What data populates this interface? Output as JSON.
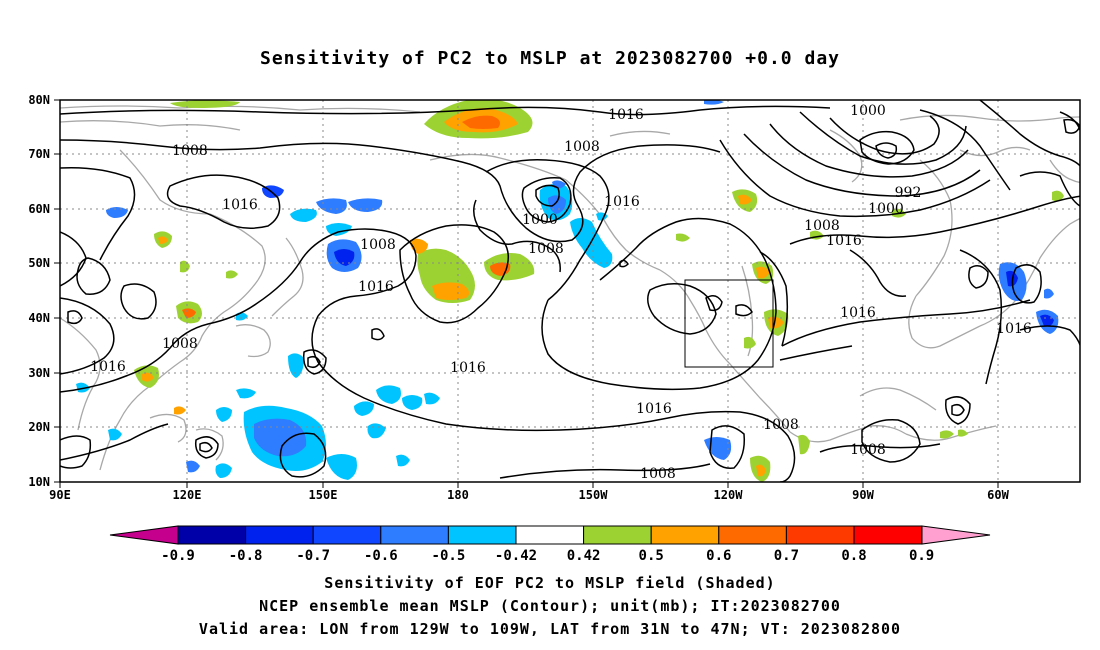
{
  "title": "Sensitivity of PC2 to MSLP at 2023082700 +0.0 day",
  "map": {
    "lon_ticks": [
      "90E",
      "120E",
      "150E",
      "180",
      "150W",
      "120W",
      "90W",
      "60W"
    ],
    "lat_ticks": [
      "80N",
      "70N",
      "60N",
      "50N",
      "40N",
      "30N",
      "20N",
      "10N"
    ],
    "lon_range": [
      "90E",
      "50W"
    ],
    "lat_range": [
      "10N",
      "80N"
    ],
    "grid": "dotted",
    "contour_color": "#000000",
    "coast_color": "#a8a8a8",
    "valid_area_box": {
      "lon_from": "129W",
      "lon_to": "109W",
      "lat_from": "31N",
      "lat_to": "47N"
    },
    "contour_labels": [
      {
        "id": "l1",
        "text": "1016"
      },
      {
        "id": "l2",
        "text": "1008"
      },
      {
        "id": "l3",
        "text": "1000"
      },
      {
        "id": "l4",
        "text": "1008"
      },
      {
        "id": "l5",
        "text": "992"
      },
      {
        "id": "l6",
        "text": "1000"
      },
      {
        "id": "l7",
        "text": "1016"
      },
      {
        "id": "l8",
        "text": "1008"
      },
      {
        "id": "l9",
        "text": "1016"
      },
      {
        "id": "l10",
        "text": "1000"
      },
      {
        "id": "l11",
        "text": "1008"
      },
      {
        "id": "l12",
        "text": "1016"
      },
      {
        "id": "l13",
        "text": "1008"
      },
      {
        "id": "l14",
        "text": "1016"
      },
      {
        "id": "l15",
        "text": "1008"
      },
      {
        "id": "l16",
        "text": "1016"
      },
      {
        "id": "l17",
        "text": "1016"
      },
      {
        "id": "l18",
        "text": "1016"
      },
      {
        "id": "l19",
        "text": "1016"
      },
      {
        "id": "l20",
        "text": "1008"
      },
      {
        "id": "l21",
        "text": "1008"
      },
      {
        "id": "l22",
        "text": "1008"
      },
      {
        "id": "l23",
        "text": "1016"
      }
    ]
  },
  "colorbar": {
    "labels": [
      "-0.9",
      "-0.8",
      "-0.7",
      "-0.6",
      "-0.5",
      "-0.42",
      "0.42",
      "0.5",
      "0.6",
      "0.7",
      "0.8",
      "0.9"
    ],
    "colors": [
      "#0000a8",
      "#0022ee",
      "#1046ff",
      "#2e7cff",
      "#00c4ff",
      "#ffffff",
      "#9cd232",
      "#ffa200",
      "#ff6a00",
      "#ff3a00",
      "#ff0000"
    ],
    "low_end_color": "#c4008c",
    "high_end_color": "#ffa0d0"
  },
  "captions": {
    "line1": "Sensitivity of EOF PC2 to MSLP field (Shaded)",
    "line2": "NCEP ensemble mean MSLP (Contour); unit(mb); IT:2023082700",
    "line3": "Valid area: LON from 129W to 109W, LAT from 31N to 47N; VT: 2023082800"
  }
}
